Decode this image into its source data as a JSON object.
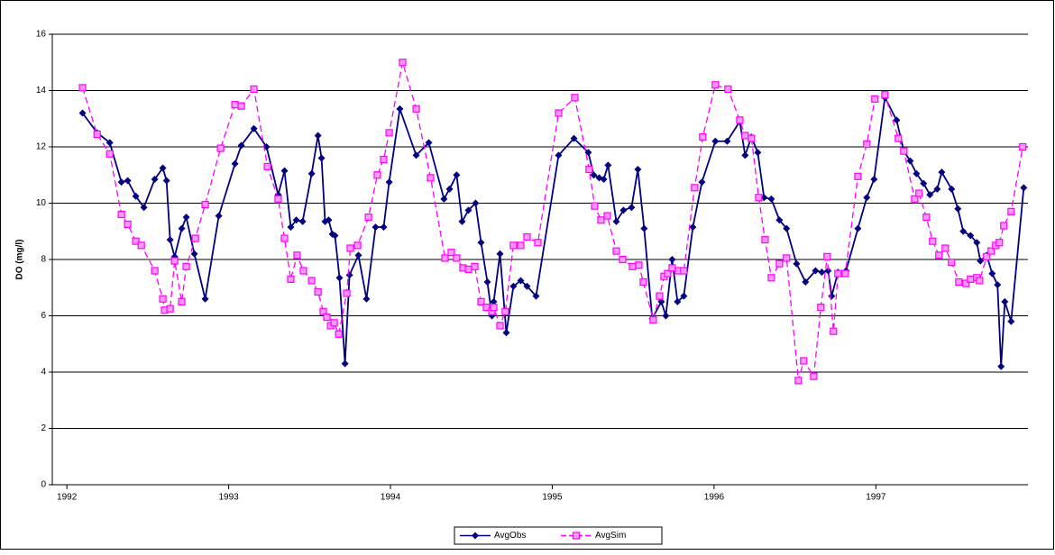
{
  "chart_data": {
    "type": "line",
    "y_label": "DO (mg/l)",
    "xlim": [
      1991.91,
      1997.94
    ],
    "xticks": [
      1992,
      1993,
      1994,
      1995,
      1996,
      1997
    ],
    "ylim": [
      0,
      16
    ],
    "yticks": [
      0,
      2,
      4,
      6,
      8,
      10,
      12,
      14,
      16
    ],
    "grid": true,
    "legend": "bottom",
    "series": [
      {
        "name": "AvgObs",
        "color": "#000080",
        "marker": "diamond",
        "dash": false,
        "x": [
          1992.097,
          1992.187,
          1992.265,
          1992.337,
          1992.376,
          1992.426,
          1992.476,
          1992.543,
          1992.593,
          1992.616,
          1992.638,
          1992.666,
          1992.71,
          1992.738,
          1992.788,
          1992.855,
          1992.939,
          1993.039,
          1993.078,
          1993.156,
          1993.234,
          1993.306,
          1993.345,
          1993.384,
          1993.418,
          1993.457,
          1993.513,
          1993.552,
          1993.574,
          1993.596,
          1993.618,
          1993.641,
          1993.657,
          1993.685,
          1993.719,
          1993.747,
          1993.802,
          1993.852,
          1993.908,
          1993.958,
          1993.992,
          1994.058,
          1994.159,
          1994.237,
          1994.331,
          1994.365,
          1994.409,
          1994.443,
          1994.482,
          1994.526,
          1994.56,
          1994.599,
          1994.627,
          1994.638,
          1994.677,
          1994.716,
          1994.76,
          1994.805,
          1994.844,
          1994.9,
          1995.039,
          1995.134,
          1995.223,
          1995.256,
          1995.29,
          1995.318,
          1995.345,
          1995.396,
          1995.44,
          1995.49,
          1995.529,
          1995.568,
          1995.618,
          1995.674,
          1995.702,
          1995.741,
          1995.774,
          1995.813,
          1995.869,
          1995.925,
          1996.008,
          1996.081,
          1996.159,
          1996.192,
          1996.231,
          1996.27,
          1996.309,
          1996.354,
          1996.404,
          1996.448,
          1996.51,
          1996.565,
          1996.627,
          1996.666,
          1996.705,
          1996.727,
          1996.766,
          1996.816,
          1996.889,
          1996.944,
          1996.989,
          1997.056,
          1997.128,
          1997.173,
          1997.212,
          1997.251,
          1997.295,
          1997.334,
          1997.379,
          1997.407,
          1997.468,
          1997.507,
          1997.54,
          1997.585,
          1997.624,
          1997.646,
          1997.685,
          1997.719,
          1997.752,
          1997.774,
          1997.797,
          1997.836,
          1997.914
        ],
        "values": [
          13.2,
          12.5,
          12.15,
          10.75,
          10.8,
          10.25,
          9.85,
          10.85,
          11.25,
          10.8,
          8.7,
          8.1,
          9.1,
          9.5,
          8.2,
          6.6,
          9.55,
          11.4,
          12.05,
          12.65,
          12.0,
          10.3,
          11.15,
          9.15,
          9.4,
          9.35,
          11.05,
          12.4,
          11.6,
          9.35,
          9.4,
          8.9,
          8.85,
          7.35,
          4.3,
          7.45,
          8.15,
          6.6,
          9.15,
          9.15,
          10.75,
          13.35,
          11.7,
          12.15,
          10.15,
          10.5,
          11.0,
          9.35,
          9.75,
          10.0,
          8.6,
          7.2,
          6.0,
          6.5,
          8.2,
          5.4,
          7.05,
          7.25,
          7.05,
          6.7,
          11.7,
          12.3,
          11.8,
          11.0,
          10.9,
          10.85,
          11.35,
          9.35,
          9.75,
          9.85,
          11.2,
          9.1,
          5.9,
          6.5,
          6.0,
          8.0,
          6.5,
          6.7,
          9.15,
          10.75,
          12.2,
          12.2,
          12.9,
          11.7,
          12.35,
          11.8,
          10.2,
          10.15,
          9.4,
          9.1,
          7.85,
          7.2,
          7.6,
          7.55,
          7.6,
          6.7,
          7.55,
          7.6,
          9.1,
          10.2,
          10.85,
          13.75,
          12.95,
          11.85,
          11.5,
          11.05,
          10.7,
          10.3,
          10.5,
          11.1,
          10.5,
          9.8,
          9.0,
          8.85,
          8.6,
          7.95,
          8.15,
          7.5,
          7.1,
          4.2,
          6.5,
          5.8,
          10.55
        ]
      },
      {
        "name": "AvgSim",
        "color": "#ff00ff",
        "marker": "square",
        "dash": true,
        "x": [
          1992.097,
          1992.187,
          1992.265,
          1992.337,
          1992.376,
          1992.426,
          1992.46,
          1992.543,
          1992.593,
          1992.604,
          1992.638,
          1992.666,
          1992.71,
          1992.738,
          1992.794,
          1992.855,
          1992.95,
          1993.039,
          1993.078,
          1993.156,
          1993.24,
          1993.306,
          1993.345,
          1993.384,
          1993.423,
          1993.462,
          1993.513,
          1993.552,
          1993.585,
          1993.607,
          1993.63,
          1993.652,
          1993.68,
          1993.73,
          1993.752,
          1993.797,
          1993.864,
          1993.919,
          1993.958,
          1993.992,
          1994.075,
          1994.159,
          1994.248,
          1994.337,
          1994.376,
          1994.409,
          1994.448,
          1994.482,
          1994.521,
          1994.56,
          1994.593,
          1994.627,
          1994.638,
          1994.677,
          1994.71,
          1994.76,
          1994.805,
          1994.844,
          1994.911,
          1995.039,
          1995.139,
          1995.228,
          1995.262,
          1995.301,
          1995.34,
          1995.396,
          1995.435,
          1995.496,
          1995.535,
          1995.563,
          1995.624,
          1995.663,
          1995.691,
          1995.713,
          1995.741,
          1995.78,
          1995.813,
          1995.88,
          1995.93,
          1996.008,
          1996.086,
          1996.159,
          1996.192,
          1996.231,
          1996.276,
          1996.315,
          1996.354,
          1996.404,
          1996.448,
          1996.521,
          1996.554,
          1996.616,
          1996.66,
          1996.699,
          1996.738,
          1996.766,
          1996.811,
          1996.889,
          1996.944,
          1996.994,
          1997.056,
          1997.139,
          1997.173,
          1997.24,
          1997.267,
          1997.312,
          1997.351,
          1997.39,
          1997.429,
          1997.468,
          1997.513,
          1997.557,
          1997.585,
          1997.624,
          1997.641,
          1997.685,
          1997.713,
          1997.741,
          1997.763,
          1997.791,
          1997.836,
          1997.908
        ],
        "values": [
          14.1,
          12.45,
          11.75,
          9.6,
          9.25,
          8.65,
          8.5,
          7.6,
          6.6,
          6.2,
          6.25,
          7.95,
          6.5,
          7.75,
          8.75,
          9.95,
          11.95,
          13.5,
          13.45,
          14.05,
          11.3,
          10.15,
          8.75,
          7.3,
          8.15,
          7.6,
          7.25,
          6.85,
          6.15,
          5.95,
          5.65,
          5.75,
          5.35,
          6.8,
          8.4,
          8.5,
          9.5,
          11.0,
          11.55,
          12.5,
          15.0,
          13.35,
          10.9,
          8.05,
          8.25,
          8.05,
          7.7,
          7.65,
          7.75,
          6.5,
          6.3,
          6.15,
          6.3,
          5.65,
          6.15,
          8.5,
          8.5,
          8.8,
          8.6,
          13.2,
          13.75,
          11.2,
          9.9,
          9.4,
          9.55,
          8.3,
          8.0,
          7.75,
          7.8,
          7.2,
          5.85,
          6.7,
          7.4,
          7.5,
          7.7,
          7.6,
          7.6,
          10.55,
          12.35,
          14.2,
          14.05,
          12.95,
          12.4,
          12.3,
          10.2,
          8.7,
          7.35,
          7.85,
          8.05,
          3.7,
          4.4,
          3.85,
          6.3,
          8.1,
          5.45,
          7.5,
          7.5,
          10.95,
          12.1,
          13.7,
          13.85,
          12.3,
          11.85,
          10.15,
          10.35,
          9.5,
          8.65,
          8.15,
          8.4,
          7.9,
          7.2,
          7.15,
          7.3,
          7.35,
          7.25,
          8.1,
          8.3,
          8.5,
          8.6,
          9.2,
          9.7,
          12.0
        ]
      }
    ]
  }
}
